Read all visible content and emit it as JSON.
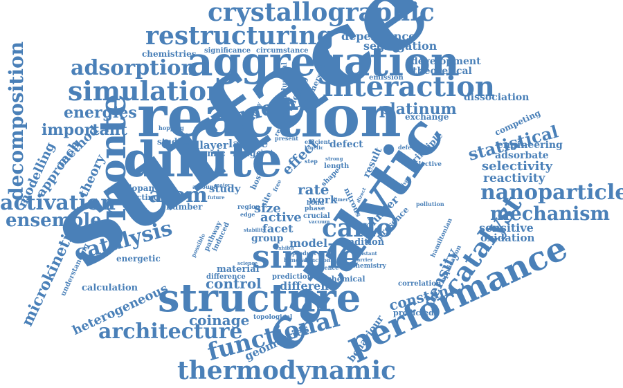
{
  "cloud": {
    "color": "#4a80b8",
    "words": {
      "surface": "surface",
      "reaction": "reaction",
      "catalytic": "catalytic",
      "aggregation": "aggregation",
      "dilute": "dilute",
      "structure": "structure",
      "performance": "performance",
      "crystallographic": "crystallographic",
      "restructuring": "restructuring",
      "interaction": "interaction",
      "simulation": "simulation",
      "adsorption": "adsorption",
      "monte": "monte",
      "single": "single",
      "thermodynamic": "thermodynamic",
      "functional": "functional",
      "architecture": "architecture",
      "nanoparticles": "nanoparticles",
      "mechanism": "mechanism",
      "catalyst": "catalyst",
      "decomposition": "decomposition",
      "activation": "activation",
      "ensemble": "ensemble",
      "catalysis": "catalysis",
      "atom": "atom",
      "carlo": "carlo",
      "metal": "metal",
      "energies": "energies",
      "important": "important",
      "platinum": "platinum",
      "statistical": "statistical",
      "microkinetic": "microkinetic",
      "modelling": "modelling",
      "approach": "approach",
      "method": "method",
      "theory": "theory",
      "density": "density",
      "constant": "constant",
      "control": "control",
      "coinage": "coinage",
      "heterogeneous": "heterogeneous",
      "geometries": "geometries",
      "behaviour": "behaviour",
      "selectivity": "selectivity",
      "reactivity": "reactivity",
      "sensitive": "sensitive",
      "oxidation": "oxidation",
      "engineering": "engineering",
      "adsorbate": "adsorbate",
      "dissociation": "dissociation",
      "competing": "competing",
      "exchange": "exchange",
      "development": "development",
      "theoretical": "theoretical",
      "dependence": "dependence",
      "segregation": "segregation",
      "significance": "significance",
      "circumstance": "circumstance",
      "chemistries": "chemistries",
      "emission": "emission",
      "rate": "rate",
      "size": "size",
      "active": "active",
      "facet": "facet",
      "model": "model",
      "different": "different",
      "material": "material",
      "difference": "difference",
      "calculation": "calculation",
      "energetic": "energetic",
      "understanding": "understanding",
      "lattice": "lattice",
      "adlayer": "adlayer",
      "studies": "studies",
      "atomic": "atomic",
      "range": "range",
      "defect": "defect",
      "effect": "effect",
      "result": "result",
      "cluster": "cluster",
      "presence": "presence",
      "condition": "condition",
      "work": "work",
      "group": "group",
      "study": "study",
      "dopant": "dopant",
      "directing": "directing",
      "number": "number",
      "pathway": "pathway",
      "induced": "induced",
      "host": "host",
      "site": "site",
      "nitrous": "nitrous",
      "crucial": "crucial",
      "phase": "phase",
      "bond": "bond",
      "prediction": "prediction",
      "chemical": "chemical",
      "chemistry": "chemistry",
      "correlation": "correlation",
      "predicted": "predicted",
      "principle": "principle",
      "selective": "selective",
      "defective": "defective",
      "topological": "topological",
      "alloying": "alloying",
      "immersed": "immersed",
      "industrial": "industrial",
      "employ": "employ",
      "repulsive": "repulsive",
      "hopping": "hopping",
      "present": "present",
      "efficient": "efficient",
      "kinetic": "kinetic",
      "step": "step",
      "length": "length",
      "strong": "strong",
      "shape": "shape",
      "amount": "amount",
      "major": "major",
      "future": "future",
      "region": "region",
      "edge": "edge",
      "stability": "stability",
      "possible": "possible",
      "exhibit": "exhibit",
      "product": "product",
      "bimetallic": "bimetallic",
      "function": "function",
      "influence": "influence",
      "science": "science",
      "vacuum": "vacuum",
      "resistant": "resistant",
      "barrier": "barrier",
      "pollution": "pollution",
      "hamiltonian": "hamiltonian",
      "application": "application",
      "activity": "activity",
      "direct": "direct",
      "sheet": "sheet",
      "free": "free",
      "dimer": "dimer"
    }
  }
}
